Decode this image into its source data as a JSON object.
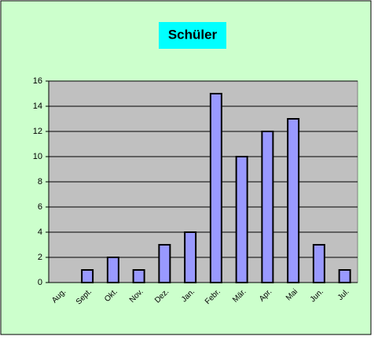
{
  "chart_data": {
    "type": "bar",
    "title": "Schüler",
    "categories": [
      "Aug.",
      "Sept.",
      "Okt.",
      "Nov.",
      "Dez.",
      "Jan.",
      "Febr.",
      "Mär.",
      "Apr.",
      "Mai",
      "Jun.",
      "Jul."
    ],
    "values": [
      0,
      1,
      2,
      1,
      3,
      4,
      15,
      10,
      12,
      13,
      3,
      1
    ],
    "color": "#9999ff",
    "ylim": [
      0,
      16
    ],
    "yticks": [
      0,
      2,
      4,
      6,
      8,
      10,
      12,
      14,
      16
    ],
    "grid": true
  }
}
